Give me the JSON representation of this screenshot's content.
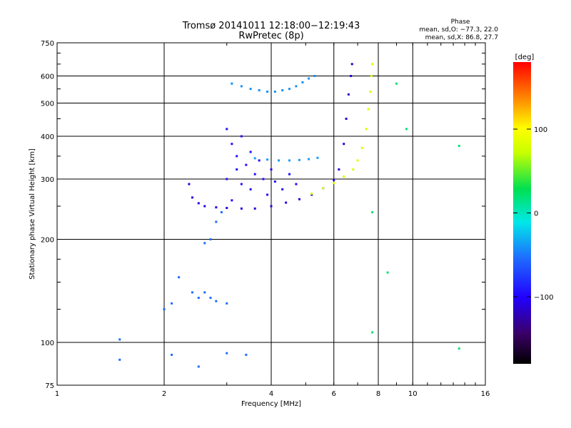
{
  "chart_data": {
    "type": "scatter",
    "title": "Tromsø 20141011 12:18:00−12:19:43",
    "subtitle": "RwPretec (8p)",
    "xlabel": "Frequency [MHz]",
    "ylabel": "Stationary phase Virtual Height [km]",
    "x_scale": "log",
    "y_scale": "log",
    "xlim": [
      1,
      16
    ],
    "ylim": [
      75,
      750
    ],
    "x_ticks": [
      1,
      2,
      4,
      6,
      8,
      10,
      16
    ],
    "x_tick_labels": [
      "1",
      "2",
      "4",
      "6",
      "8",
      "10",
      "16"
    ],
    "y_ticks": [
      75,
      100,
      200,
      300,
      400,
      500,
      600,
      750
    ],
    "y_tick_labels": [
      "75",
      "100",
      "200",
      "300",
      "400",
      "500",
      "600",
      "750"
    ],
    "grid": true,
    "phase_info": {
      "heading": "Phase",
      "line_o": "mean, sd,O: −77.3, 22.0",
      "line_x": "mean, sd,X: 86.8, 27.7"
    },
    "colorbar": {
      "label": "[deg]",
      "range": [
        -180,
        180
      ],
      "ticks": [
        100,
        0,
        -100
      ],
      "tick_labels": [
        "100",
        "0",
        "−100"
      ],
      "colormap": "rainbow (black-purple-blue-cyan-green-yellow-red)"
    },
    "traces": [
      {
        "trace": "O-mode F2 trace, lower branch",
        "phase": -110,
        "points": [
          [
            2.35,
            290
          ],
          [
            2.4,
            265
          ],
          [
            2.5,
            255
          ],
          [
            2.6,
            250
          ],
          [
            2.8,
            248
          ],
          [
            3.0,
            247
          ],
          [
            3.3,
            246
          ],
          [
            3.6,
            246
          ],
          [
            4.0,
            250
          ],
          [
            4.4,
            256
          ],
          [
            4.8,
            262
          ],
          [
            5.2,
            270
          ],
          [
            5.6,
            282
          ],
          [
            6.0,
            298
          ],
          [
            6.2,
            320
          ],
          [
            6.4,
            380
          ],
          [
            6.5,
            450
          ],
          [
            6.6,
            530
          ],
          [
            6.7,
            600
          ],
          [
            6.75,
            650
          ]
        ]
      },
      {
        "trace": "X-mode F2 trace, lower branch",
        "phase": 80,
        "points": [
          [
            5.2,
            272
          ],
          [
            5.6,
            282
          ],
          [
            6.0,
            292
          ],
          [
            6.4,
            305
          ],
          [
            6.8,
            320
          ],
          [
            7.0,
            340
          ],
          [
            7.2,
            370
          ],
          [
            7.4,
            420
          ],
          [
            7.5,
            480
          ],
          [
            7.6,
            540
          ],
          [
            7.65,
            600
          ],
          [
            7.7,
            650
          ]
        ]
      },
      {
        "trace": "Scatter cloud 3-4 MHz",
        "phase": -95,
        "points": [
          [
            3.0,
            420
          ],
          [
            3.0,
            300
          ],
          [
            3.1,
            380
          ],
          [
            3.1,
            260
          ],
          [
            3.2,
            350
          ],
          [
            3.2,
            320
          ],
          [
            3.3,
            290
          ],
          [
            3.3,
            400
          ],
          [
            3.4,
            330
          ],
          [
            3.5,
            360
          ],
          [
            3.5,
            280
          ],
          [
            3.6,
            310
          ],
          [
            3.7,
            340
          ],
          [
            3.8,
            300
          ],
          [
            3.9,
            270
          ],
          [
            4.0,
            320
          ],
          [
            4.1,
            295
          ],
          [
            4.3,
            280
          ],
          [
            4.5,
            310
          ],
          [
            4.7,
            290
          ]
        ]
      },
      {
        "trace": "Upper echo band ~560 km",
        "phase": -45,
        "points": [
          [
            3.1,
            570
          ],
          [
            3.3,
            560
          ],
          [
            3.5,
            550
          ],
          [
            3.7,
            545
          ],
          [
            3.9,
            540
          ],
          [
            4.1,
            540
          ],
          [
            4.3,
            545
          ],
          [
            4.5,
            550
          ],
          [
            4.7,
            560
          ],
          [
            4.9,
            575
          ],
          [
            5.1,
            590
          ],
          [
            5.3,
            600
          ]
        ]
      },
      {
        "trace": "Mid echo band ~340 km",
        "phase": -40,
        "points": [
          [
            3.6,
            345
          ],
          [
            3.9,
            342
          ],
          [
            4.2,
            340
          ],
          [
            4.5,
            340
          ],
          [
            4.8,
            341
          ],
          [
            5.1,
            343
          ],
          [
            5.4,
            346
          ]
        ]
      },
      {
        "trace": "Low E-region scatter",
        "phase": -60,
        "points": [
          [
            2.0,
            125
          ],
          [
            2.1,
            130
          ],
          [
            2.2,
            155
          ],
          [
            2.4,
            140
          ],
          [
            2.5,
            135
          ],
          [
            2.6,
            140
          ],
          [
            2.7,
            135
          ],
          [
            2.8,
            132
          ],
          [
            3.0,
            130
          ],
          [
            2.6,
            195
          ],
          [
            2.7,
            200
          ],
          [
            2.8,
            225
          ],
          [
            2.9,
            240
          ],
          [
            1.5,
            89
          ],
          [
            2.1,
            92
          ],
          [
            2.5,
            85
          ],
          [
            3.0,
            93
          ],
          [
            3.4,
            92
          ],
          [
            1.5,
            102
          ]
        ]
      },
      {
        "trace": "Isolated points",
        "phase": 20,
        "points": [
          [
            7.7,
            240
          ],
          [
            7.7,
            107
          ],
          [
            8.5,
            160
          ],
          [
            9.6,
            420
          ],
          [
            13.5,
            375
          ],
          [
            13.5,
            96
          ],
          [
            9.0,
            570
          ]
        ]
      }
    ]
  }
}
